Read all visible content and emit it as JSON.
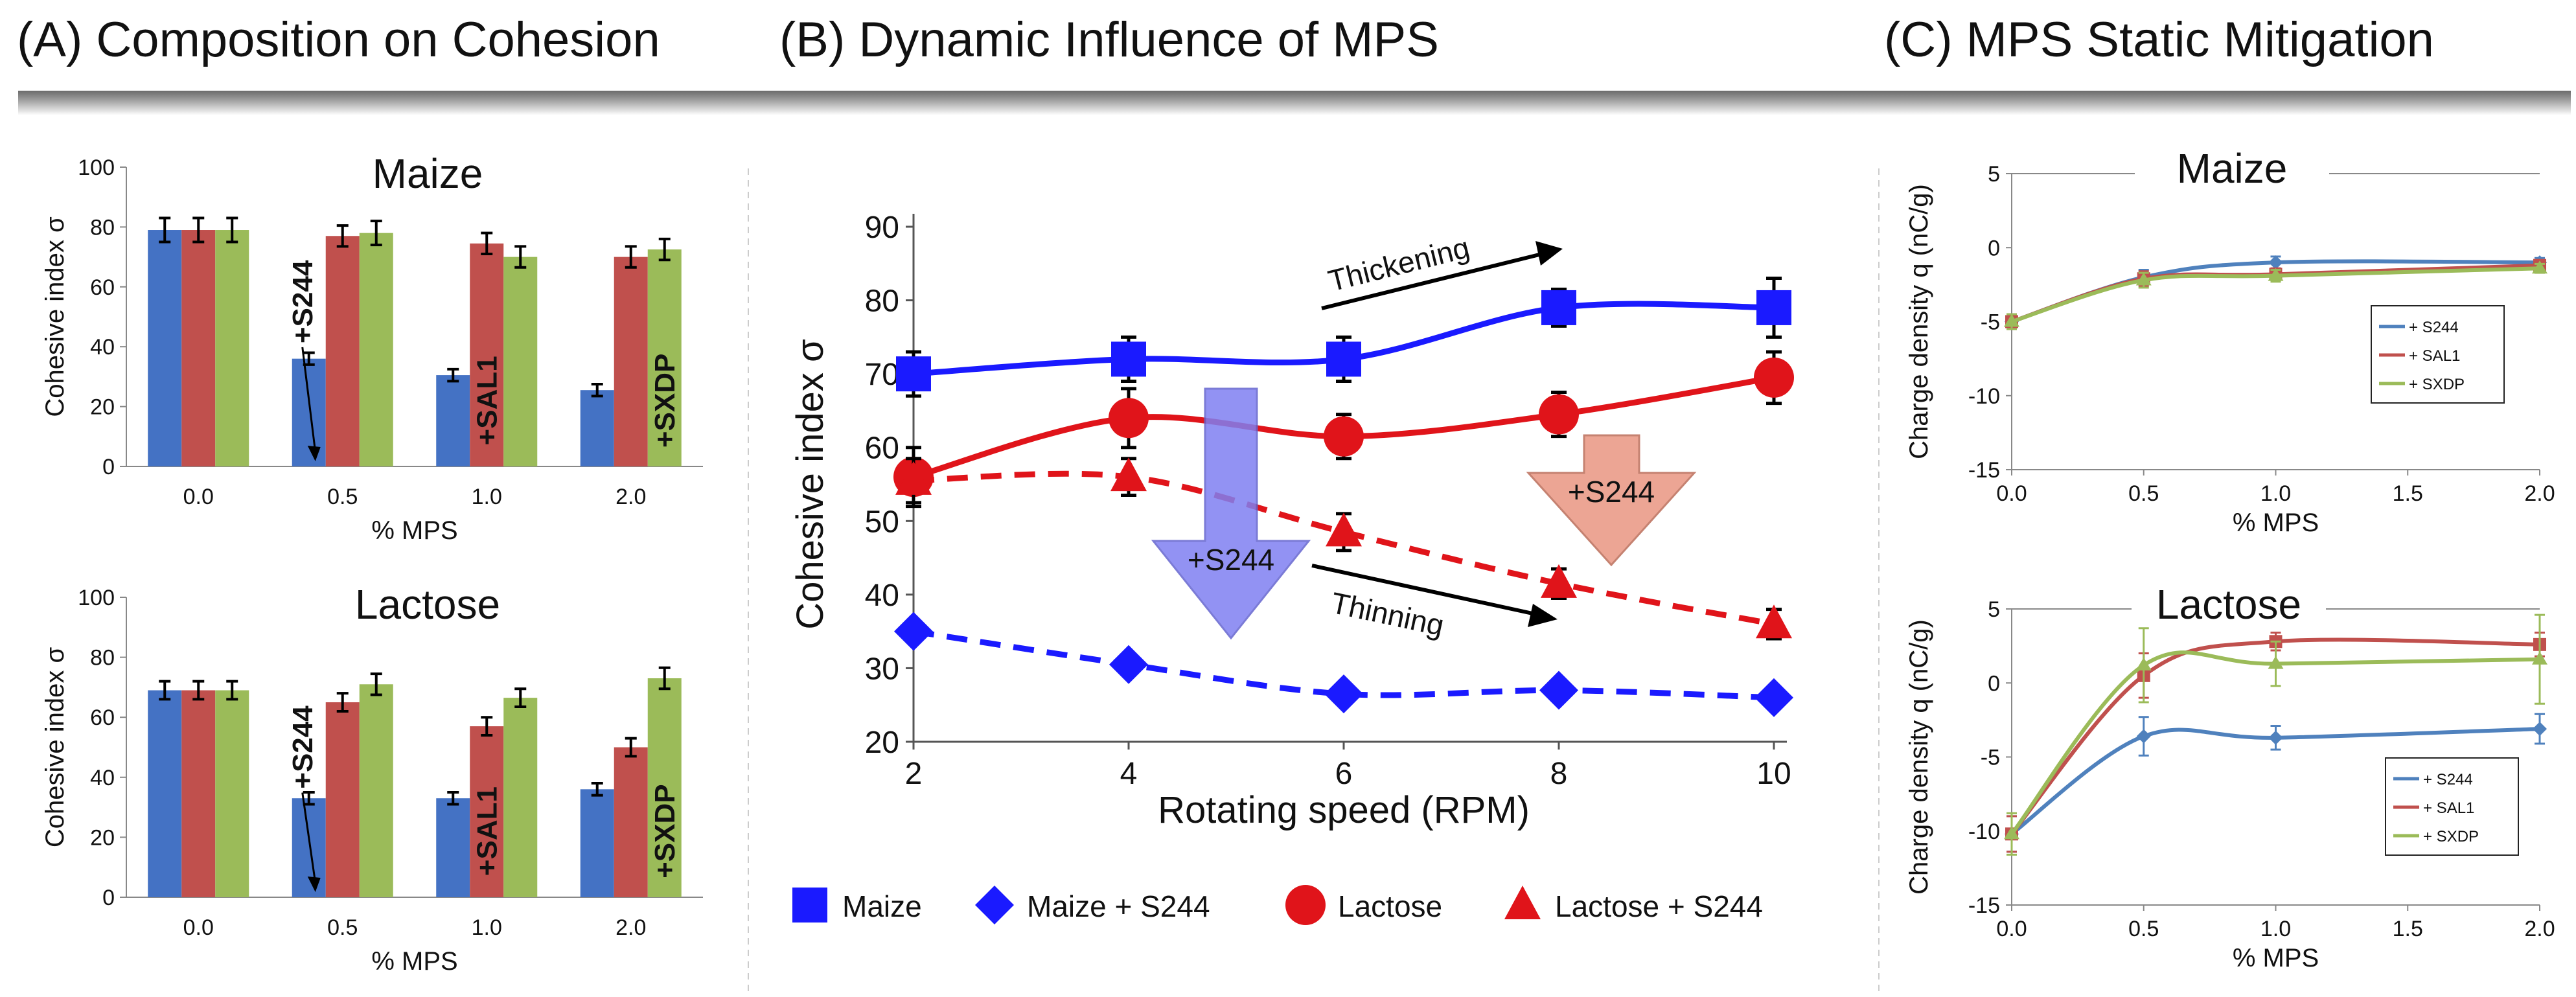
{
  "titles": {
    "a": "(A) Composition on Cohesion",
    "b": "(B) Dynamic Influence of MPS",
    "c": "(C) MPS Static Mitigation"
  },
  "colors": {
    "s244": "#4472c4",
    "sal1": "#c0504d",
    "sxdp": "#9bbb59",
    "maize_line": "#1a1aff",
    "lactose_line": "#e0141a",
    "line_s244": "#4f81bd",
    "line_sal1": "#c0504d",
    "line_sxdp": "#9bbb59"
  },
  "chart_data": [
    {
      "id": "A_maize",
      "type": "bar",
      "title": "Maize",
      "xlabel": "% MPS",
      "ylabel": "Cohesive index σ",
      "ylim": [
        0,
        100
      ],
      "yticks": [
        "0",
        "20",
        "40",
        "60",
        "80",
        "100"
      ],
      "categories": [
        "0.0",
        "0.5",
        "1.0",
        "2.0"
      ],
      "series": [
        {
          "name": "+S244",
          "values": [
            79,
            36,
            30.5,
            25.5
          ],
          "err": [
            4,
            2,
            2,
            2
          ]
        },
        {
          "name": "+SAL1",
          "values": [
            79,
            77,
            74.5,
            70
          ],
          "err": [
            4,
            3.5,
            3.5,
            3.5
          ]
        },
        {
          "name": "+SXDP",
          "values": [
            79,
            78,
            70,
            72.5
          ],
          "err": [
            4,
            4,
            3.5,
            3.5
          ]
        }
      ],
      "annotations": [
        "+S244",
        "+SAL1",
        "+SXDP"
      ]
    },
    {
      "id": "A_lactose",
      "type": "bar",
      "title": "Lactose",
      "xlabel": "% MPS",
      "ylabel": "Cohesive index σ",
      "ylim": [
        0,
        100
      ],
      "yticks": [
        "0",
        "20",
        "40",
        "60",
        "80",
        "100"
      ],
      "categories": [
        "0.0",
        "0.5",
        "1.0",
        "2.0"
      ],
      "series": [
        {
          "name": "+S244",
          "values": [
            69,
            33,
            33,
            36
          ],
          "err": [
            3,
            2,
            2,
            2
          ]
        },
        {
          "name": "+SAL1",
          "values": [
            69,
            65,
            57,
            50
          ],
          "err": [
            3,
            3,
            3,
            3
          ]
        },
        {
          "name": "+SXDP",
          "values": [
            69,
            71,
            66.5,
            73
          ],
          "err": [
            3,
            3.5,
            3,
            3.5
          ]
        }
      ],
      "annotations": [
        "+S244",
        "+SAL1",
        "+SXDP"
      ]
    },
    {
      "id": "B",
      "type": "line",
      "xlabel": "Rotating speed (RPM)",
      "ylabel": "Cohesive index σ",
      "xlim": [
        2,
        10
      ],
      "ylim": [
        20,
        90
      ],
      "xticks": [
        "2",
        "4",
        "6",
        "8",
        "10"
      ],
      "yticks": [
        "20",
        "30",
        "40",
        "50",
        "60",
        "70",
        "80",
        "90"
      ],
      "x": [
        2,
        4,
        6,
        8,
        10
      ],
      "series": [
        {
          "name": "Maize",
          "values": [
            70,
            72,
            72,
            79,
            79
          ],
          "err": [
            3,
            3,
            3,
            2.5,
            4
          ],
          "marker": "square",
          "dash": false
        },
        {
          "name": "Maize + S244",
          "values": [
            35,
            30.5,
            26.5,
            27,
            26
          ],
          "err": [
            0,
            0,
            0,
            0,
            0
          ],
          "marker": "diamond",
          "dash": true
        },
        {
          "name": "Lactose",
          "values": [
            56,
            64,
            61.5,
            64.5,
            69.5
          ],
          "err": [
            4,
            4,
            3,
            3,
            3.5
          ],
          "marker": "circle",
          "dash": false
        },
        {
          "name": "Lactose + S244",
          "values": [
            55.5,
            56,
            48.5,
            41.5,
            36
          ],
          "err": [
            3,
            2.5,
            2.5,
            2,
            2
          ],
          "marker": "triangle",
          "dash": true
        }
      ],
      "annotations": [
        "Thickening",
        "Thinning",
        "+S244",
        "+S244"
      ]
    },
    {
      "id": "C_maize",
      "type": "line",
      "title": "Maize",
      "xlabel": "% MPS",
      "ylabel": "Charge density q (nC/g)",
      "xlim": [
        0,
        2
      ],
      "ylim": [
        -15,
        5
      ],
      "xticks": [
        "0.0",
        "0.5",
        "1.0",
        "1.5",
        "2.0"
      ],
      "yticks": [
        "5",
        "0",
        "-5",
        "-10",
        "-15"
      ],
      "x": [
        0,
        0.5,
        1.0,
        2.0
      ],
      "series": [
        {
          "name": "+ S244",
          "values": [
            -5,
            -2,
            -1,
            -1
          ],
          "err": [
            0.5,
            0.5,
            0.4,
            0.3
          ]
        },
        {
          "name": "+ SAL1",
          "values": [
            -5,
            -2.1,
            -1.8,
            -1.2
          ],
          "err": [
            0.5,
            0.5,
            0.4,
            0.3
          ]
        },
        {
          "name": "+ SXDP",
          "values": [
            -5,
            -2.2,
            -1.9,
            -1.4
          ],
          "err": [
            0.5,
            0.5,
            0.4,
            0.3
          ]
        }
      ]
    },
    {
      "id": "C_lactose",
      "type": "line",
      "title": "Lactose",
      "xlabel": "% MPS",
      "ylabel": "Charge density q (nC/g)",
      "xlim": [
        0,
        2
      ],
      "ylim": [
        -15,
        5
      ],
      "xticks": [
        "0.0",
        "0.5",
        "1.0",
        "1.5",
        "2.0"
      ],
      "yticks": [
        "5",
        "0",
        "-5",
        "-10",
        "-15"
      ],
      "x": [
        0,
        0.5,
        1.0,
        2.0
      ],
      "series": [
        {
          "name": "+ S244",
          "values": [
            -10.2,
            -3.6,
            -3.7,
            -3.1
          ],
          "err": [
            1.2,
            1.3,
            0.8,
            1.0
          ]
        },
        {
          "name": "+ SAL1",
          "values": [
            -10.2,
            0.5,
            2.8,
            2.6
          ],
          "err": [
            1.2,
            1.5,
            0.6,
            0.8
          ]
        },
        {
          "name": "+ SXDP",
          "values": [
            -10.2,
            1.2,
            1.3,
            1.6
          ],
          "err": [
            1.4,
            2.5,
            1.5,
            3.0
          ]
        }
      ]
    }
  ]
}
